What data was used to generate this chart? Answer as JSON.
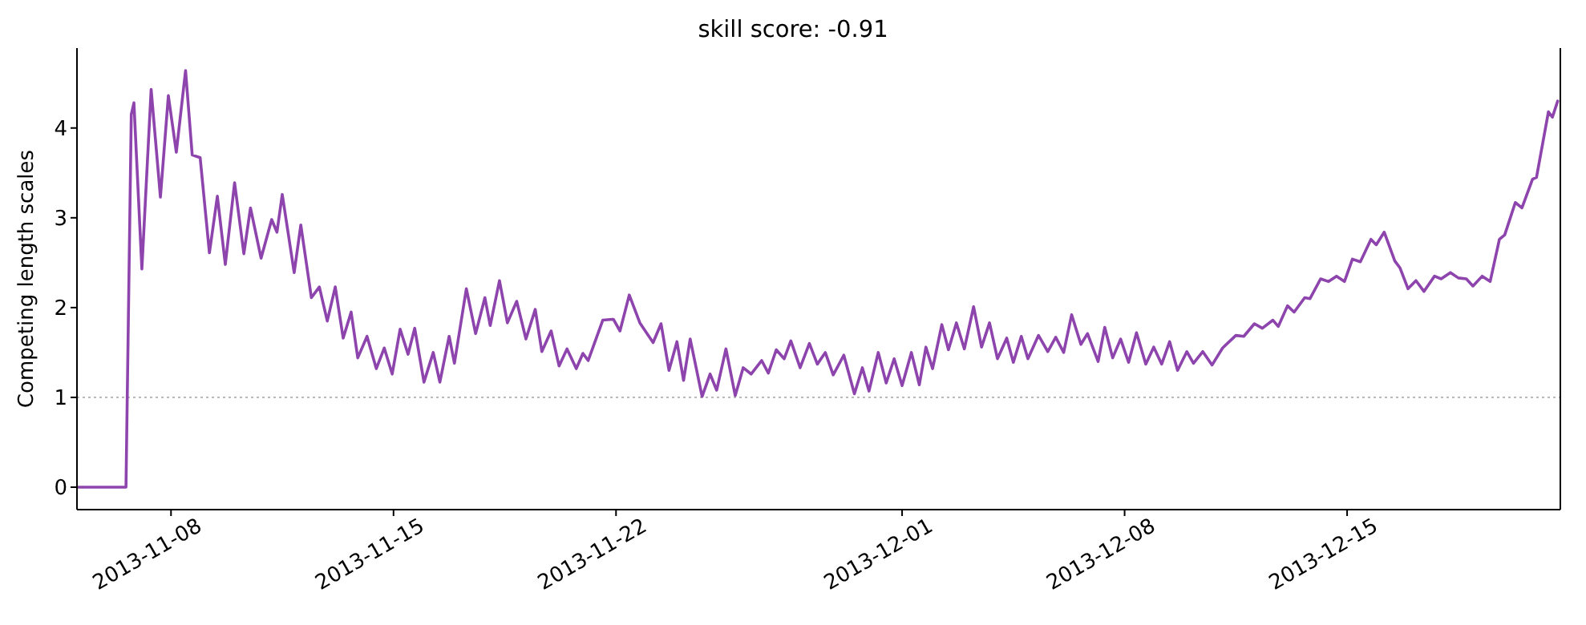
{
  "chart_data": {
    "type": "line",
    "title": "skill score: -0.91",
    "ylabel": "Competing length scales",
    "xlim": [
      "2013-11-05T01:00",
      "2013-12-21T17:00"
    ],
    "xticks": [
      "2013-11-08",
      "2013-11-15",
      "2013-11-22",
      "2013-12-01",
      "2013-12-08",
      "2013-12-15"
    ],
    "ylim": [
      -0.25,
      4.89
    ],
    "yticks": [
      0,
      1,
      2,
      3,
      4
    ],
    "grid": false,
    "marker": "none",
    "line_style": "solid",
    "ref_lines": [
      {
        "axis": "y",
        "value": 1,
        "color": "#b0b0b0",
        "line_style": "dotted"
      }
    ],
    "series": [
      {
        "color": "#8e44ad",
        "x": [
          "2013-11-05T01:00",
          "2013-11-06T14:00",
          "2013-11-06T18:00",
          "2013-11-06T20:00",
          "2013-11-07T02:00",
          "2013-11-07T09:00",
          "2013-11-07T16:00",
          "2013-11-07T22:00",
          "2013-11-08T04:00",
          "2013-11-08T11:00",
          "2013-11-08T16:00",
          "2013-11-08T22:00",
          "2013-11-09T05:00",
          "2013-11-09T11:00",
          "2013-11-09T17:00",
          "2013-11-10T00:00",
          "2013-11-10T07:00",
          "2013-11-10T12:00",
          "2013-11-10T20:00",
          "2013-11-11T04:00",
          "2013-11-11T08:00",
          "2013-11-11T12:00",
          "2013-11-11T21:00",
          "2013-11-12T02:00",
          "2013-11-12T10:00",
          "2013-11-12T16:00",
          "2013-11-12T22:00",
          "2013-11-13T04:00",
          "2013-11-13T10:00",
          "2013-11-13T16:00",
          "2013-11-13T21:00",
          "2013-11-14T04:00",
          "2013-11-14T11:00",
          "2013-11-14T17:00",
          "2013-11-14T23:00",
          "2013-11-15T05:00",
          "2013-11-15T11:00",
          "2013-11-15T16:00",
          "2013-11-15T23:00",
          "2013-11-16T06:00",
          "2013-11-16T11:00",
          "2013-11-16T18:00",
          "2013-11-16T22:00",
          "2013-11-17T07:00",
          "2013-11-17T14:00",
          "2013-11-17T21:00",
          "2013-11-18T01:00",
          "2013-11-18T08:00",
          "2013-11-18T14:00",
          "2013-11-18T21:00",
          "2013-11-19T04:00",
          "2013-11-19T11:00",
          "2013-11-19T16:00",
          "2013-11-19T23:00",
          "2013-11-20T05:00",
          "2013-11-20T11:00",
          "2013-11-20T18:00",
          "2013-11-20T23:00",
          "2013-11-21T03:00",
          "2013-11-21T14:00",
          "2013-11-21T22:00",
          "2013-11-22T03:00",
          "2013-11-22T10:00",
          "2013-11-22T18:00",
          "2013-11-23T04:00",
          "2013-11-23T10:00",
          "2013-11-23T16:00",
          "2013-11-23T22:00",
          "2013-11-24T03:00",
          "2013-11-24T08:00",
          "2013-11-24T17:00",
          "2013-11-24T23:00",
          "2013-11-25T04:00",
          "2013-11-25T11:00",
          "2013-11-25T18:00",
          "2013-11-26T00:00",
          "2013-11-26T06:00",
          "2013-11-26T14:00",
          "2013-11-26T19:00",
          "2013-11-27T01:00",
          "2013-11-27T07:00",
          "2013-11-27T12:00",
          "2013-11-27T19:00",
          "2013-11-28T02:00",
          "2013-11-28T08:00",
          "2013-11-28T14:00",
          "2013-11-28T20:00",
          "2013-11-29T04:00",
          "2013-11-29T12:00",
          "2013-11-29T18:00",
          "2013-11-29T23:00",
          "2013-11-30T06:00",
          "2013-11-30T12:00",
          "2013-11-30T18:00",
          "2013-12-01T00:00",
          "2013-12-01T07:00",
          "2013-12-01T13:00",
          "2013-12-01T18:00",
          "2013-12-01T23:00",
          "2013-12-02T06:00",
          "2013-12-02T11:00",
          "2013-12-02T17:00",
          "2013-12-02T23:00",
          "2013-12-03T06:00",
          "2013-12-03T12:00",
          "2013-12-03T18:00",
          "2013-12-04T00:00",
          "2013-12-04T07:00",
          "2013-12-04T12:00",
          "2013-12-04T18:00",
          "2013-12-04T23:00",
          "2013-12-05T07:00",
          "2013-12-05T14:00",
          "2013-12-05T20:00",
          "2013-12-06T02:00",
          "2013-12-06T08:00",
          "2013-12-06T15:00",
          "2013-12-06T20:00",
          "2013-12-07T04:00",
          "2013-12-07T09:00",
          "2013-12-07T15:00",
          "2013-12-07T21:00",
          "2013-12-08T03:00",
          "2013-12-08T09:00",
          "2013-12-08T16:00",
          "2013-12-08T22:00",
          "2013-12-09T04:00",
          "2013-12-09T10:00",
          "2013-12-09T16:00",
          "2013-12-09T23:00",
          "2013-12-10T04:00",
          "2013-12-10T11:00",
          "2013-12-10T18:00",
          "2013-12-11T02:00",
          "2013-12-11T12:00",
          "2013-12-11T18:00",
          "2013-12-12T02:00",
          "2013-12-12T08:00",
          "2013-12-12T16:00",
          "2013-12-12T20:00",
          "2013-12-13T03:00",
          "2013-12-13T08:00",
          "2013-12-13T16:00",
          "2013-12-13T20:00",
          "2013-12-14T04:00",
          "2013-12-14T10:00",
          "2013-12-14T16:00",
          "2013-12-14T22:00",
          "2013-12-15T04:00",
          "2013-12-15T10:00",
          "2013-12-15T18:00",
          "2013-12-15T22:00",
          "2013-12-16T04:00",
          "2013-12-16T12:00",
          "2013-12-16T16:00",
          "2013-12-16T22:00",
          "2013-12-17T04:00",
          "2013-12-17T10:00",
          "2013-12-17T18:00",
          "2013-12-17T23:00",
          "2013-12-18T06:00",
          "2013-12-18T12:00",
          "2013-12-18T18:00",
          "2013-12-18T23:00",
          "2013-12-19T06:00",
          "2013-12-19T12:00",
          "2013-12-19T19:00",
          "2013-12-19T23:00",
          "2013-12-20T07:00",
          "2013-12-20T12:00",
          "2013-12-20T20:00",
          "2013-12-20T23:00",
          "2013-12-21T08:00",
          "2013-12-21T11:00",
          "2013-12-21T15:00"
        ],
        "values": [
          0,
          0,
          4.15,
          4.28,
          2.43,
          4.43,
          3.23,
          4.36,
          3.73,
          4.64,
          3.7,
          3.67,
          2.61,
          3.24,
          2.48,
          3.39,
          2.6,
          3.11,
          2.55,
          2.98,
          2.84,
          3.26,
          2.39,
          2.92,
          2.11,
          2.23,
          1.85,
          2.23,
          1.66,
          1.95,
          1.44,
          1.68,
          1.32,
          1.55,
          1.26,
          1.76,
          1.48,
          1.77,
          1.17,
          1.5,
          1.17,
          1.68,
          1.38,
          2.21,
          1.71,
          2.11,
          1.8,
          2.3,
          1.83,
          2.07,
          1.65,
          1.98,
          1.51,
          1.74,
          1.35,
          1.54,
          1.32,
          1.49,
          1.41,
          1.86,
          1.87,
          1.74,
          2.14,
          1.83,
          1.61,
          1.82,
          1.3,
          1.62,
          1.19,
          1.65,
          1.01,
          1.26,
          1.08,
          1.54,
          1.02,
          1.33,
          1.26,
          1.41,
          1.27,
          1.53,
          1.43,
          1.63,
          1.33,
          1.6,
          1.37,
          1.5,
          1.25,
          1.47,
          1.04,
          1.33,
          1.07,
          1.5,
          1.16,
          1.43,
          1.13,
          1.5,
          1.14,
          1.56,
          1.32,
          1.81,
          1.53,
          1.83,
          1.54,
          2.01,
          1.56,
          1.83,
          1.43,
          1.66,
          1.39,
          1.68,
          1.43,
          1.69,
          1.51,
          1.67,
          1.5,
          1.92,
          1.59,
          1.71,
          1.4,
          1.78,
          1.44,
          1.65,
          1.39,
          1.72,
          1.37,
          1.56,
          1.37,
          1.62,
          1.3,
          1.51,
          1.38,
          1.51,
          1.36,
          1.55,
          1.69,
          1.68,
          1.82,
          1.77,
          1.86,
          1.79,
          2.02,
          1.95,
          2.11,
          2.1,
          2.32,
          2.29,
          2.35,
          2.29,
          2.54,
          2.51,
          2.76,
          2.7,
          2.84,
          2.52,
          2.44,
          2.21,
          2.3,
          2.18,
          2.35,
          2.32,
          2.39,
          2.33,
          2.32,
          2.24,
          2.35,
          2.29,
          2.76,
          2.81,
          3.17,
          3.11,
          3.43,
          3.45,
          4.18,
          4.12,
          4.3
        ]
      }
    ]
  }
}
